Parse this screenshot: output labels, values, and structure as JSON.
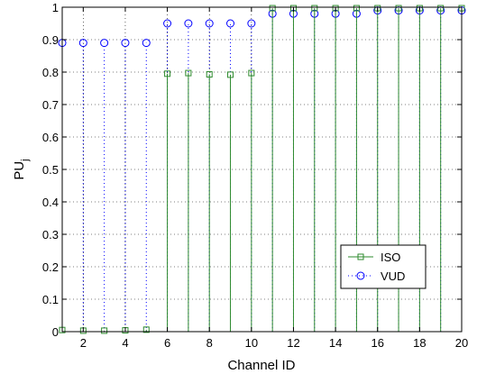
{
  "chart_data": {
    "type": "stem",
    "xlabel": "Channel ID",
    "ylabel_main": "PU",
    "ylabel_sub": "j",
    "xlim": [
      1,
      20
    ],
    "ylim": [
      0,
      1
    ],
    "xticks": [
      2,
      4,
      6,
      8,
      10,
      12,
      14,
      16,
      18,
      20
    ],
    "xtick_labels": [
      "2",
      "4",
      "6",
      "8",
      "10",
      "12",
      "14",
      "16",
      "18",
      "20"
    ],
    "yticks": [
      0,
      0.1,
      0.2,
      0.3,
      0.4,
      0.5,
      0.6,
      0.7,
      0.8,
      0.9,
      1
    ],
    "ytick_labels": [
      "0",
      "0.1",
      "0.2",
      "0.3",
      "0.4",
      "0.5",
      "0.6",
      "0.7",
      "0.8",
      "0.9",
      "1"
    ],
    "grid": true,
    "legend_position": "bottom-right",
    "x": [
      1,
      2,
      3,
      4,
      5,
      6,
      7,
      8,
      9,
      10,
      11,
      12,
      13,
      14,
      15,
      16,
      17,
      18,
      19,
      20
    ],
    "series": [
      {
        "name": "ISO",
        "color": "#2e8b2e",
        "marker": "square",
        "line": "solid",
        "values": [
          0.005,
          0.003,
          0.003,
          0.004,
          0.006,
          0.795,
          0.797,
          0.793,
          0.792,
          0.797,
          0.997,
          0.997,
          0.997,
          0.997,
          0.997,
          0.997,
          0.997,
          0.997,
          0.997,
          0.997
        ]
      },
      {
        "name": "VUD",
        "color": "#0000ff",
        "marker": "circle",
        "line": "dotted",
        "values": [
          0.89,
          0.89,
          0.89,
          0.89,
          0.89,
          0.95,
          0.95,
          0.95,
          0.95,
          0.95,
          0.98,
          0.98,
          0.98,
          0.98,
          0.98,
          0.99,
          0.99,
          0.99,
          0.99,
          0.99
        ]
      }
    ]
  }
}
